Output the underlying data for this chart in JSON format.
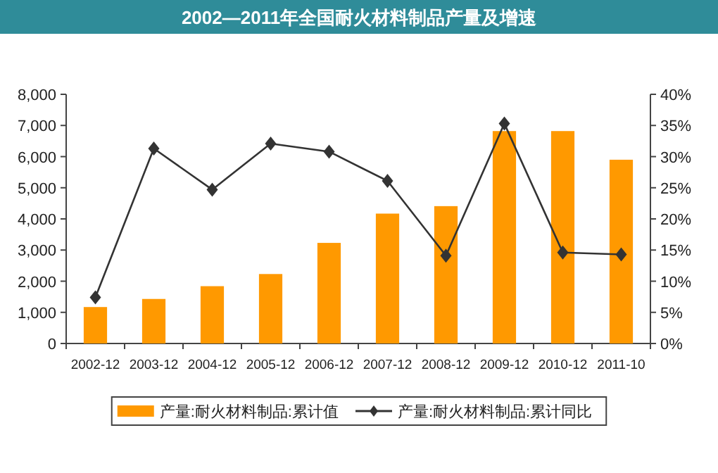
{
  "chart_data": {
    "type": "bar",
    "title": "2002—2011年全国耐火材料制品产量及增速",
    "categories": [
      "2002-12",
      "2003-12",
      "2004-12",
      "2005-12",
      "2006-12",
      "2007-12",
      "2008-12",
      "2009-12",
      "2010-12",
      "2011-10"
    ],
    "series": [
      {
        "name": "产量:耐火材料制品:累计值",
        "color": "#ff9900",
        "values": [
          1170,
          1430,
          1840,
          2230,
          3230,
          4170,
          4410,
          6820,
          6820,
          5900
        ]
      },
      {
        "name": "产量:耐火材料制品:累计同比",
        "type": "line",
        "axis": "y2",
        "color": "#333333",
        "marker": "diamond",
        "values": [
          7.4,
          31.3,
          24.7,
          32.1,
          30.8,
          26.1,
          14.1,
          35.3,
          14.6,
          14.3
        ]
      }
    ],
    "ylim": [
      0,
      8000
    ],
    "yticks": [
      0,
      {
        "value": 1000,
        "label": "1,000"
      },
      {
        "value": 2000,
        "label": "2,000"
      },
      {
        "value": 3000,
        "label": "3,000"
      },
      {
        "value": 4000,
        "label": "4,000"
      },
      {
        "value": 5000,
        "label": "5,000"
      },
      {
        "value": 6000,
        "label": "6,000"
      },
      {
        "value": 7000,
        "label": "7,000"
      },
      {
        "value": 8000,
        "label": "8,000"
      }
    ],
    "y2lim": [
      0,
      40
    ],
    "y2ticks": [
      {
        "value": 0,
        "label": "0%"
      },
      {
        "value": 5,
        "label": "5%"
      },
      {
        "value": 10,
        "label": "10%"
      },
      {
        "value": 15,
        "label": "15%"
      },
      {
        "value": 20,
        "label": "20%"
      },
      {
        "value": 25,
        "label": "25%"
      },
      {
        "value": 30,
        "label": "30%"
      },
      {
        "value": 35,
        "label": "35%"
      },
      {
        "value": 40,
        "label": "40%"
      }
    ],
    "legend": "bottom"
  }
}
